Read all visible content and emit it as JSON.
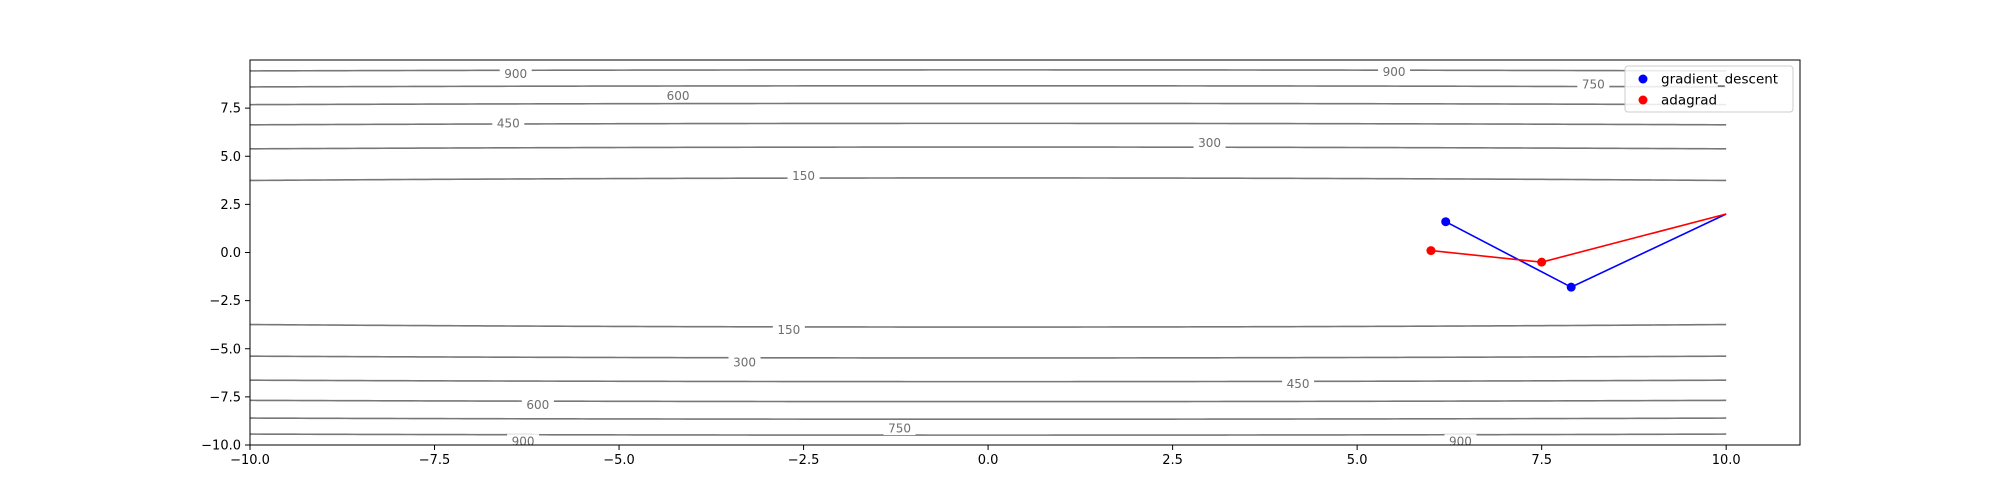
{
  "chart_data": {
    "type": "line",
    "title": "",
    "xlabel": "",
    "ylabel": "",
    "xlim": [
      -10,
      11
    ],
    "ylim": [
      -10,
      10
    ],
    "grid": false,
    "legend_position": "top-right",
    "x_ticks": [
      "-10.0",
      "-7.5",
      "-5.0",
      "-2.5",
      "0.0",
      "2.5",
      "5.0",
      "7.5",
      "10.0"
    ],
    "y_ticks": [
      "-10.0",
      "-7.5",
      "-5.0",
      "-2.5",
      "0.0",
      "2.5",
      "5.0",
      "7.5"
    ],
    "contour": {
      "function": "0.1*x^2 + 10*y^2",
      "x_range": [
        -10,
        10
      ],
      "color": "#777777",
      "levels": [
        150,
        300,
        450,
        600,
        750,
        900
      ],
      "labels": [
        {
          "text": "150",
          "x": -2.5,
          "y": 4.01
        },
        {
          "text": "300",
          "x": 3.0,
          "y": 5.72
        },
        {
          "text": "450",
          "x": -6.5,
          "y": 6.72
        },
        {
          "text": "600",
          "x": -4.2,
          "y": 8.16
        },
        {
          "text": "750",
          "x": 8.2,
          "y": 8.76
        },
        {
          "text": "900",
          "x": -6.4,
          "y": 9.3
        },
        {
          "text": "900",
          "x": 5.5,
          "y": 9.4
        },
        {
          "text": "150",
          "x": -2.7,
          "y": -3.99
        },
        {
          "text": "300",
          "x": -3.3,
          "y": -5.69
        },
        {
          "text": "450",
          "x": 4.2,
          "y": -6.8
        },
        {
          "text": "600",
          "x": -6.1,
          "y": -7.9
        },
        {
          "text": "750",
          "x": -1.2,
          "y": -9.12
        },
        {
          "text": "900",
          "x": -6.3,
          "y": -9.8
        },
        {
          "text": "900",
          "x": 6.4,
          "y": -9.8
        }
      ]
    },
    "series": [
      {
        "name": "gradient_descent",
        "color": "#0000ff",
        "x": [
          10.0,
          7.9,
          6.2
        ],
        "y": [
          2.0,
          -1.8,
          1.6
        ],
        "marker_indices": [
          1,
          2
        ]
      },
      {
        "name": "adagrad",
        "color": "#ff0000",
        "x": [
          10.0,
          7.5,
          6.0
        ],
        "y": [
          2.0,
          -0.5,
          0.1
        ],
        "marker_indices": [
          1,
          2
        ]
      }
    ]
  }
}
